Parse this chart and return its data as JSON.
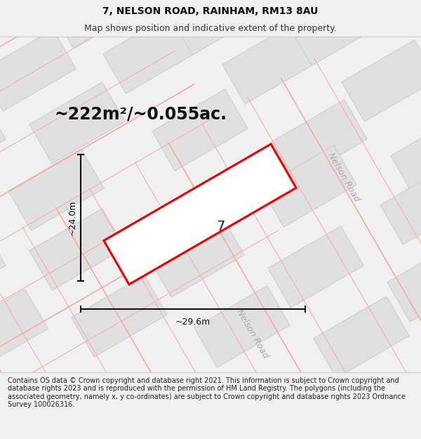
{
  "title_line1": "7, NELSON ROAD, RAINHAM, RM13 8AU",
  "title_line2": "Map shows position and indicative extent of the property.",
  "area_text": "~222m²/~0.055ac.",
  "dim_width": "~29.6m",
  "dim_height": "~24.0m",
  "property_number": "7",
  "footer_text": "Contains OS data © Crown copyright and database right 2021. This information is subject to Crown copyright and database rights 2023 and is reproduced with the permission of HM Land Registry. The polygons (including the associated geometry, namely x, y co-ordinates) are subject to Crown copyright and database rights 2023 Ordnance Survey 100026316.",
  "bg_color": "#f0f0f0",
  "map_bg": "#ffffff",
  "building_fill": "#e0e0e0",
  "building_edge": "#cccccc",
  "road_line_color": "#f5aaaa",
  "property_fill": "#ffffff",
  "property_edge": "#ee0000",
  "nelson_road_color": "#aaaaaa",
  "title_fontsize": 10,
  "subtitle_fontsize": 9,
  "area_fontsize": 17,
  "dim_fontsize": 9,
  "footer_fontsize": 7,
  "road_label_fontsize": 9,
  "prop_number_fontsize": 14
}
